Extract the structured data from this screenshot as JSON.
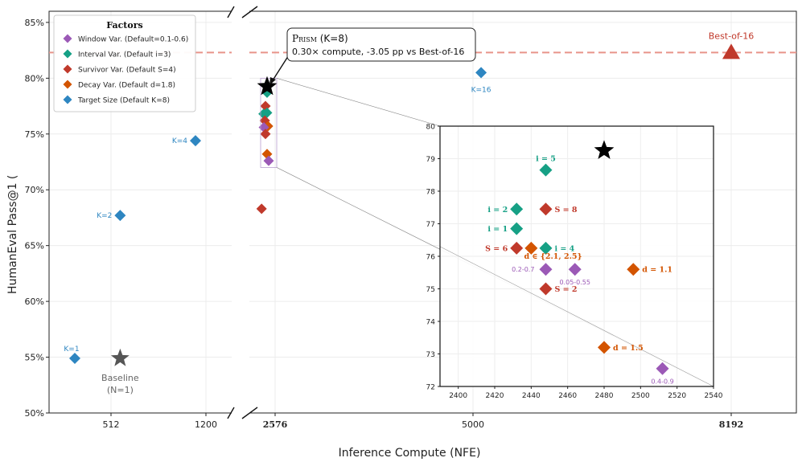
{
  "chart_data": {
    "type": "scatter",
    "xlabel": "Inference Compute (NFE)",
    "ylabel": "HumanEval Pass@1 (",
    "ylim": [
      50,
      86
    ],
    "yticks": [
      "50%",
      "55%",
      "60%",
      "65%",
      "70%",
      "75%",
      "80%",
      "85%"
    ],
    "ytick_values": [
      50,
      55,
      60,
      65,
      70,
      75,
      80,
      85
    ],
    "xticks": [
      {
        "label": "512",
        "value": 512,
        "bold": false
      },
      {
        "label": "1200",
        "value": 1200,
        "bold": false
      },
      {
        "label": "2576",
        "value": 2576,
        "bold": true
      },
      {
        "label": "5000",
        "value": 5000,
        "bold": false
      },
      {
        "label": "8192",
        "value": 8192,
        "bold": true
      }
    ],
    "legend": {
      "title": "Factors",
      "placement": "top-left",
      "items": [
        {
          "label": "Window Var. (Default=0.1-0.6)",
          "color": "#9b59b6"
        },
        {
          "label": "Interval Var. (Default i=3)",
          "color": "#16a085"
        },
        {
          "label": "Survivor Var. (Default S=4)",
          "color": "#c0392b"
        },
        {
          "label": "Decay Var. (Default d=1.8)",
          "color": "#d35400"
        },
        {
          "label": "Target Size (Default K=8)",
          "color": "#2e86c1"
        }
      ]
    },
    "target_size_points": [
      {
        "label": "K=1",
        "x": 128,
        "y": 54.9
      },
      {
        "label": "K=2",
        "x": 512,
        "y": 67.7
      },
      {
        "label": "K=4",
        "x": 1150,
        "y": 74.4
      },
      {
        "label": "K=16",
        "x": 5100,
        "y": 80.5
      }
    ],
    "baseline": {
      "label": "Baseline",
      "sublabel": "(N=1)",
      "x": 512,
      "y": 54.9,
      "color": "#555555"
    },
    "best_of_16": {
      "label": "Best-of-16",
      "x": 8192,
      "y": 82.3,
      "color": "#c0392b"
    },
    "prism": {
      "title_name": "Prism",
      "title_suffix": " (K=8)",
      "detail": "0.30× compute, -3.05 pp vs Best-of-16",
      "x": 2480,
      "y": 79.25
    },
    "main_cluster": [
      {
        "y": 78.7,
        "color": "#16a085",
        "dx": 0.5
      },
      {
        "y": 77.5,
        "color": "#c0392b",
        "dx": 0
      },
      {
        "y": 76.8,
        "color": "#16a085",
        "dx": -0.6
      },
      {
        "y": 76.9,
        "color": "#16a085",
        "dx": 0.5
      },
      {
        "y": 76.2,
        "color": "#c0392b",
        "dx": -0.2
      },
      {
        "y": 75.7,
        "color": "#d35400",
        "dx": 0.8
      },
      {
        "y": 75.6,
        "color": "#9b59b6",
        "dx": -0.5
      },
      {
        "y": 75.0,
        "color": "#c0392b",
        "dx": 0
      },
      {
        "y": 73.2,
        "color": "#d35400",
        "dx": 0.5
      },
      {
        "y": 72.6,
        "color": "#9b59b6",
        "dx": 1
      },
      {
        "y": 68.3,
        "color": "#c0392b",
        "dx": -1.2
      }
    ],
    "inset": {
      "xlim": [
        2390,
        2540
      ],
      "ylim": [
        72,
        80
      ],
      "xticks": [
        "2400",
        "2420",
        "2440",
        "2460",
        "2480",
        "2500",
        "2520",
        "2540"
      ],
      "xtick_values": [
        2400,
        2420,
        2440,
        2460,
        2480,
        2500,
        2520,
        2540
      ],
      "yticks": [
        "72",
        "73",
        "74",
        "75",
        "76",
        "77",
        "78",
        "79",
        "80"
      ],
      "ytick_values": [
        72,
        73,
        74,
        75,
        76,
        77,
        78,
        79,
        80
      ],
      "prism": {
        "x": 2480,
        "y": 79.25
      },
      "points": [
        {
          "x": 2448,
          "y": 78.65,
          "color": "#16a085",
          "label": "i = 5",
          "pos": "above"
        },
        {
          "x": 2432,
          "y": 77.45,
          "color": "#16a085",
          "label": "i = 2",
          "pos": "left"
        },
        {
          "x": 2448,
          "y": 77.45,
          "color": "#c0392b",
          "label": "S = 8",
          "pos": "right"
        },
        {
          "x": 2432,
          "y": 76.85,
          "color": "#16a085",
          "label": "i = 1",
          "pos": "left"
        },
        {
          "x": 2432,
          "y": 76.25,
          "color": "#c0392b",
          "label": "S = 6",
          "pos": "left"
        },
        {
          "x": 2440,
          "y": 76.25,
          "color": "#d35400",
          "label": "",
          "pos": "none"
        },
        {
          "x": 2448,
          "y": 76.25,
          "color": "#16a085",
          "label": "i = 4",
          "pos": "right"
        },
        {
          "x": 2448,
          "y": 75.6,
          "color": "#9b59b6",
          "label": "0.2-0.7",
          "pos": "left-small"
        },
        {
          "x": 2464,
          "y": 75.6,
          "color": "#9b59b6",
          "label": "0.05-0.55",
          "pos": "below-small"
        },
        {
          "x": 2496,
          "y": 75.6,
          "color": "#d35400",
          "label": "d = 1.1",
          "pos": "right"
        },
        {
          "x": 2448,
          "y": 75.0,
          "color": "#c0392b",
          "label": "S = 2",
          "pos": "right"
        },
        {
          "x": 2480,
          "y": 73.2,
          "color": "#d35400",
          "label": "d = 1.5",
          "pos": "right"
        },
        {
          "x": 2512,
          "y": 72.55,
          "color": "#9b59b6",
          "label": "0.4-0.9",
          "pos": "below-small"
        }
      ],
      "extra_labels": [
        {
          "text": "d ∈ {2.1, 2.5}",
          "x": 2452,
          "y": 76.0,
          "color": "#d35400"
        }
      ]
    }
  }
}
